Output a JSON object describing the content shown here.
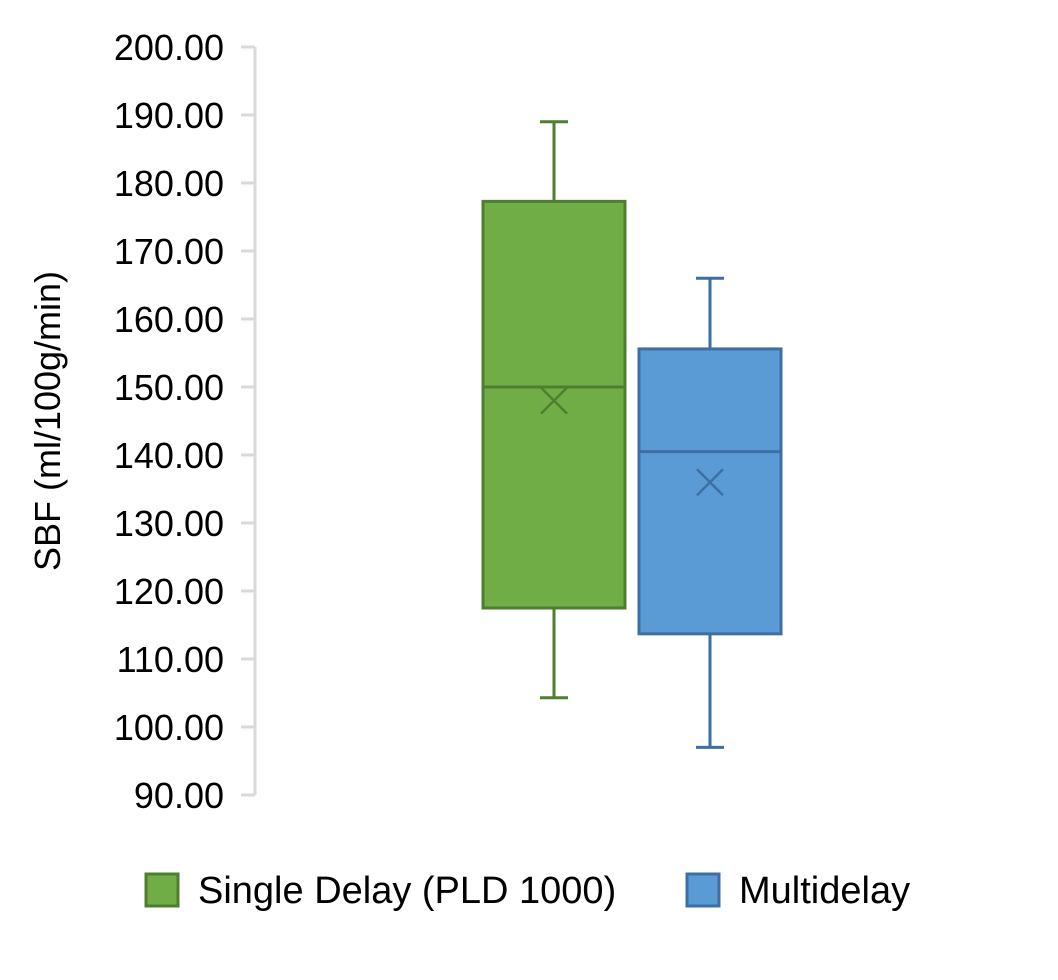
{
  "chart_data": {
    "type": "box",
    "title": "",
    "xlabel": "",
    "ylabel": "SBF (ml/100g/min)",
    "ylim": [
      90,
      200
    ],
    "y_ticks": [
      90,
      100,
      110,
      120,
      130,
      140,
      150,
      160,
      170,
      180,
      190,
      200
    ],
    "y_tick_labels": [
      "90.00",
      "100.00",
      "110.00",
      "120.00",
      "130.00",
      "140.00",
      "150.00",
      "160.00",
      "170.00",
      "180.00",
      "190.00",
      "200.00"
    ],
    "grid": false,
    "legend_position": "bottom",
    "series": [
      {
        "name": "Single Delay (PLD 1000)",
        "color": "#70AD47",
        "edge_color": "#4E7F2E",
        "whisker_low": 104.3,
        "q1": 117.5,
        "median": 150.0,
        "q3": 177.3,
        "whisker_high": 189.0,
        "mean": 148.0
      },
      {
        "name": "Multidelay",
        "color": "#5B9BD5",
        "edge_color": "#3E6EA3",
        "whisker_low": 97.0,
        "q1": 113.7,
        "median": 140.5,
        "q3": 155.6,
        "whisker_high": 166.0,
        "mean": 136.0
      }
    ]
  }
}
